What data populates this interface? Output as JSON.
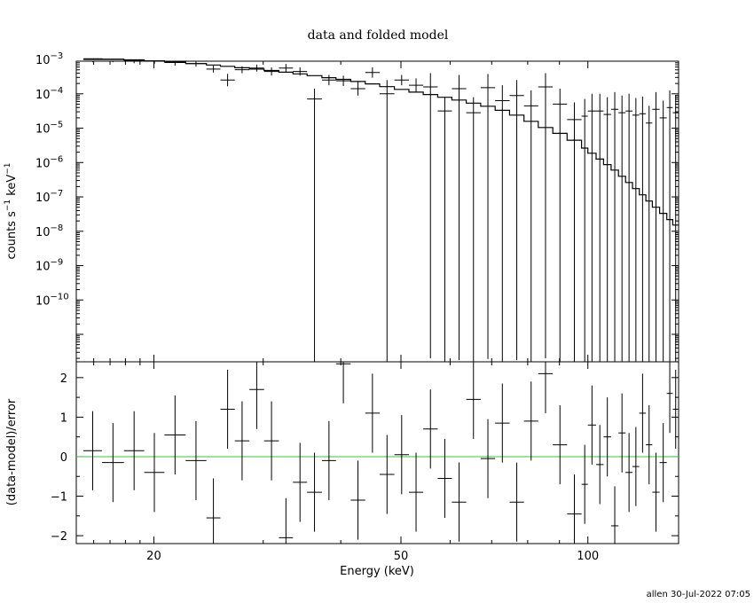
{
  "title": "data and folded model",
  "credit": "allen 30-Jul-2022 07:05",
  "chart_data": [
    {
      "type": "scatter",
      "panel": "top",
      "title": "data and folded model",
      "xlabel": "Energy (keV)",
      "ylabel_parts": [
        "counts s",
        "−1",
        " keV",
        "−1"
      ],
      "xscale": "log",
      "yscale": "log",
      "xlim": [
        15,
        140
      ],
      "ylim_exp": [
        -11.8,
        -3.05
      ],
      "ytick_labels": [
        {
          "exp": -3,
          "base": "10",
          "power": "−3"
        },
        {
          "exp": -4,
          "base": "10",
          "power": "−4"
        },
        {
          "exp": -5,
          "base": "10",
          "power": "−5"
        },
        {
          "exp": -6,
          "base": "10",
          "power": "−6"
        },
        {
          "exp": -7,
          "base": "10",
          "power": "−7"
        },
        {
          "exp": -8,
          "base": "10",
          "power": "−8"
        },
        {
          "exp": -9,
          "base": "10",
          "power": "−9"
        },
        {
          "exp": -10,
          "base": "10",
          "power": "−10"
        }
      ],
      "series": [
        {
          "kind": "data",
          "color": "#000000",
          "points": [
            [
              15.4,
              16.5,
              -3.0,
              -0.08,
              0.08
            ],
            [
              16.5,
              17.9,
              -3.0,
              -0.08,
              0.08
            ],
            [
              17.9,
              19.3,
              -3.03,
              -0.08,
              0.08
            ],
            [
              19.3,
              20.8,
              -3.05,
              -0.08,
              0.08
            ],
            [
              20.8,
              22.5,
              -3.09,
              -0.09,
              0.09
            ],
            [
              22.5,
              24.3,
              -3.12,
              -0.09,
              0.09
            ],
            [
              24.3,
              25.6,
              -3.28,
              -0.1,
              0.1
            ],
            [
              25.6,
              27.0,
              -3.6,
              -0.18,
              0.18
            ],
            [
              27.0,
              28.5,
              -3.3,
              -0.1,
              0.1
            ],
            [
              28.5,
              30.1,
              -3.25,
              -0.1,
              0.1
            ],
            [
              30.1,
              31.8,
              -3.35,
              -0.12,
              0.12
            ],
            [
              31.8,
              33.5,
              -3.25,
              -0.12,
              0.12
            ],
            [
              33.5,
              35.3,
              -3.35,
              -0.12,
              0.12
            ],
            [
              35.3,
              37.3,
              -4.15,
              -7.7,
              0.3
            ],
            [
              37.3,
              39.3,
              -3.6,
              -0.15,
              0.15
            ],
            [
              39.3,
              41.5,
              -3.62,
              -0.15,
              0.15
            ],
            [
              41.5,
              43.8,
              -3.85,
              -0.2,
              0.2
            ],
            [
              43.8,
              46.2,
              -3.38,
              -0.15,
              0.15
            ],
            [
              46.2,
              48.8,
              -4.0,
              -7.8,
              0.4
            ],
            [
              48.8,
              51.5,
              -3.6,
              -0.15,
              0.15
            ],
            [
              51.5,
              54.3,
              -3.75,
              -0.2,
              0.2
            ],
            [
              54.3,
              57.3,
              -3.8,
              -7.9,
              0.4
            ],
            [
              57.3,
              60.4,
              -4.5,
              -7.3,
              0.4
            ],
            [
              60.4,
              63.7,
              -3.85,
              -7.9,
              0.4
            ],
            [
              63.7,
              67.2,
              -4.55,
              -7.3,
              0.45
            ],
            [
              67.2,
              70.9,
              -3.82,
              -7.9,
              0.4
            ],
            [
              70.9,
              74.8,
              -4.2,
              -7.6,
              0.45
            ],
            [
              74.8,
              78.9,
              -4.05,
              -7.7,
              0.45
            ],
            [
              78.9,
              83.2,
              -4.35,
              -7.5,
              0.45
            ],
            [
              83.2,
              87.8,
              -3.8,
              -7.9,
              0.4
            ],
            [
              87.8,
              92.6,
              -4.3,
              -7.5,
              0.45
            ],
            [
              92.6,
              97.7,
              -4.75,
              -7.1,
              0.5
            ],
            [
              97.7,
              100.0,
              -4.65,
              -7.2,
              0.5
            ],
            [
              100.0,
              103.1,
              -4.5,
              -7.4,
              0.5
            ],
            [
              103.1,
              106.0,
              -4.5,
              -7.4,
              0.5
            ],
            [
              106.0,
              109.0,
              -4.6,
              -7.3,
              0.5
            ],
            [
              109.0,
              112.0,
              -4.45,
              -7.4,
              0.5
            ],
            [
              112.0,
              115.0,
              -4.55,
              -7.3,
              0.5
            ],
            [
              115.0,
              118.0,
              -4.5,
              -7.4,
              0.5
            ],
            [
              118.0,
              121.0,
              -4.62,
              -7.3,
              0.5
            ],
            [
              121.0,
              124.0,
              -4.58,
              -7.3,
              0.5
            ],
            [
              124.0,
              127.0,
              -4.85,
              -7.1,
              0.5
            ],
            [
              127.0,
              130.5,
              -4.45,
              -7.4,
              0.5
            ],
            [
              130.5,
              134.0,
              -4.7,
              -7.2,
              0.5
            ],
            [
              134.0,
              137.0,
              -4.4,
              -7.4,
              0.5
            ],
            [
              137.0,
              140.0,
              -4.55,
              -7.3,
              0.5
            ]
          ]
        },
        {
          "kind": "model",
          "color": "#000000",
          "steps": [
            [
              15.4,
              -2.98
            ],
            [
              16.5,
              -2.99
            ],
            [
              17.9,
              -3.01
            ],
            [
              19.3,
              -3.04
            ],
            [
              20.8,
              -3.07
            ],
            [
              22.5,
              -3.12
            ],
            [
              24.3,
              -3.16
            ],
            [
              25.6,
              -3.2
            ],
            [
              27.0,
              -3.24
            ],
            [
              28.5,
              -3.28
            ],
            [
              30.1,
              -3.32
            ],
            [
              31.8,
              -3.37
            ],
            [
              33.5,
              -3.42
            ],
            [
              35.3,
              -3.47
            ],
            [
              37.3,
              -3.53
            ],
            [
              39.3,
              -3.58
            ],
            [
              41.5,
              -3.64
            ],
            [
              43.8,
              -3.71
            ],
            [
              46.2,
              -3.79
            ],
            [
              48.8,
              -3.87
            ],
            [
              51.5,
              -3.95
            ],
            [
              54.3,
              -4.02
            ],
            [
              57.3,
              -4.1
            ],
            [
              60.4,
              -4.18
            ],
            [
              63.7,
              -4.27
            ],
            [
              67.2,
              -4.36
            ],
            [
              70.9,
              -4.48
            ],
            [
              74.8,
              -4.62
            ],
            [
              78.9,
              -4.8
            ],
            [
              83.2,
              -4.98
            ],
            [
              87.8,
              -5.15
            ],
            [
              92.6,
              -5.35
            ],
            [
              97.7,
              -5.58
            ],
            [
              100.0,
              -5.73
            ],
            [
              103.1,
              -5.9
            ],
            [
              106.0,
              -6.06
            ],
            [
              109.0,
              -6.22
            ],
            [
              112.0,
              -6.4
            ],
            [
              115.0,
              -6.58
            ],
            [
              118.0,
              -6.76
            ],
            [
              121.0,
              -6.94
            ],
            [
              124.0,
              -7.12
            ],
            [
              127.0,
              -7.3
            ],
            [
              130.5,
              -7.48
            ],
            [
              134.0,
              -7.66
            ],
            [
              137.0,
              -7.82
            ],
            [
              140.0,
              -7.82
            ]
          ]
        }
      ]
    },
    {
      "type": "scatter",
      "panel": "bottom",
      "xlabel": "Energy (keV)",
      "ylabel": "(data-model)/error",
      "xscale": "log",
      "xlim": [
        15,
        140
      ],
      "ylim": [
        -2.2,
        2.4
      ],
      "yticks": [
        -2,
        -1,
        0,
        1,
        2
      ],
      "ytick_labels": [
        "−2",
        "−1",
        "0",
        "1",
        "2"
      ],
      "xticks": [
        20,
        50,
        100
      ],
      "xtick_labels": [
        "20",
        "50",
        "100"
      ],
      "zero_line_color": "#40c040",
      "series": [
        {
          "kind": "residuals",
          "color": "#000000",
          "points": [
            [
              15.4,
              16.5,
              0.15,
              1.0
            ],
            [
              16.5,
              17.9,
              -0.15,
              1.0
            ],
            [
              17.9,
              19.3,
              0.15,
              1.0
            ],
            [
              19.3,
              20.8,
              -0.4,
              1.0
            ],
            [
              20.8,
              22.5,
              0.55,
              1.0
            ],
            [
              22.5,
              24.3,
              -0.1,
              1.0
            ],
            [
              24.3,
              25.6,
              -1.55,
              1.0
            ],
            [
              25.6,
              27.0,
              1.2,
              1.0
            ],
            [
              27.0,
              28.5,
              0.4,
              1.0
            ],
            [
              28.5,
              30.1,
              1.7,
              1.0
            ],
            [
              30.1,
              31.8,
              0.4,
              1.0
            ],
            [
              31.8,
              33.5,
              -2.05,
              1.0
            ],
            [
              33.5,
              35.3,
              -0.65,
              1.0
            ],
            [
              35.3,
              37.3,
              -0.9,
              1.0
            ],
            [
              37.3,
              39.3,
              -0.1,
              1.0
            ],
            [
              39.3,
              41.5,
              2.35,
              1.0
            ],
            [
              41.5,
              43.8,
              -1.1,
              1.0
            ],
            [
              43.8,
              46.2,
              1.1,
              1.0
            ],
            [
              46.2,
              48.8,
              -0.45,
              1.0
            ],
            [
              48.8,
              51.5,
              0.05,
              1.0
            ],
            [
              51.5,
              54.3,
              -0.9,
              1.0
            ],
            [
              54.3,
              57.3,
              0.7,
              1.0
            ],
            [
              57.3,
              60.4,
              -0.55,
              1.0
            ],
            [
              60.4,
              63.7,
              -1.15,
              1.0
            ],
            [
              63.7,
              67.2,
              1.45,
              1.0
            ],
            [
              67.2,
              70.9,
              -0.05,
              1.0
            ],
            [
              70.9,
              74.8,
              0.85,
              1.0
            ],
            [
              74.8,
              78.9,
              -1.15,
              1.0
            ],
            [
              78.9,
              83.2,
              0.9,
              1.0
            ],
            [
              83.2,
              87.8,
              2.1,
              1.0
            ],
            [
              87.8,
              92.6,
              0.3,
              1.0
            ],
            [
              92.6,
              97.7,
              -1.45,
              1.0
            ],
            [
              97.7,
              100.0,
              -0.7,
              1.0
            ],
            [
              100.0,
              103.1,
              0.8,
              1.0
            ],
            [
              103.1,
              106.0,
              -0.2,
              1.0
            ],
            [
              106.0,
              109.0,
              0.5,
              1.0
            ],
            [
              109.0,
              112.0,
              -1.75,
              1.0
            ],
            [
              112.0,
              115.0,
              0.6,
              1.0
            ],
            [
              115.0,
              118.0,
              -0.4,
              1.0
            ],
            [
              118.0,
              121.0,
              -0.25,
              1.0
            ],
            [
              121.0,
              124.0,
              1.1,
              1.0
            ],
            [
              124.0,
              127.0,
              0.3,
              1.0
            ],
            [
              127.0,
              130.5,
              -0.9,
              1.0
            ],
            [
              130.5,
              134.0,
              -0.15,
              1.0
            ],
            [
              134.0,
              137.0,
              1.6,
              1.0
            ],
            [
              137.0,
              140.0,
              1.2,
              1.0
            ]
          ]
        }
      ]
    }
  ]
}
